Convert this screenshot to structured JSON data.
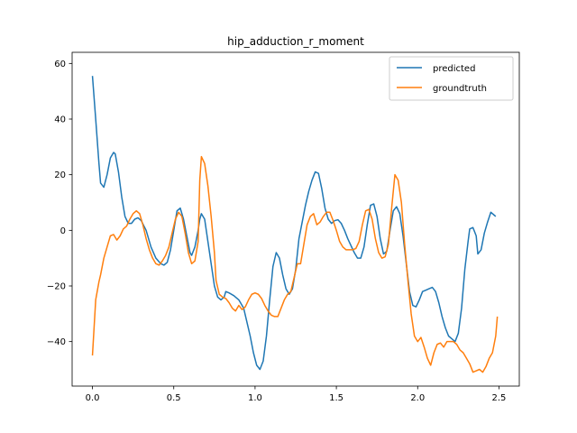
{
  "chart_data": {
    "type": "line",
    "title": "hip_adduction_r_moment",
    "xlabel": "",
    "ylabel": "",
    "xlim": [
      -0.125,
      2.625
    ],
    "ylim": [
      -56,
      64
    ],
    "x_ticks": [
      0.0,
      0.5,
      1.0,
      1.5,
      2.0,
      2.5
    ],
    "x_tick_labels": [
      "0.0",
      "0.5",
      "1.0",
      "1.5",
      "2.0",
      "2.5"
    ],
    "y_ticks": [
      -40,
      -20,
      0,
      20,
      40,
      60
    ],
    "y_tick_labels": [
      "−40",
      "−20",
      "0",
      "20",
      "40",
      "60"
    ],
    "grid": false,
    "legend_position": "top-right",
    "series": [
      {
        "name": "predicted",
        "color": "#1f77b4",
        "points": [
          [
            0.0,
            55.5
          ],
          [
            0.02,
            40
          ],
          [
            0.04,
            24
          ],
          [
            0.05,
            17
          ],
          [
            0.07,
            15.5
          ],
          [
            0.09,
            20
          ],
          [
            0.11,
            26
          ],
          [
            0.13,
            28
          ],
          [
            0.14,
            27.5
          ],
          [
            0.16,
            21
          ],
          [
            0.18,
            12
          ],
          [
            0.2,
            5
          ],
          [
            0.22,
            2.5
          ],
          [
            0.24,
            2.5
          ],
          [
            0.26,
            4
          ],
          [
            0.28,
            4.5
          ],
          [
            0.3,
            3.5
          ],
          [
            0.33,
            0
          ],
          [
            0.36,
            -6
          ],
          [
            0.39,
            -10
          ],
          [
            0.42,
            -12
          ],
          [
            0.44,
            -12.5
          ],
          [
            0.46,
            -11.5
          ],
          [
            0.48,
            -7
          ],
          [
            0.5,
            0
          ],
          [
            0.52,
            7
          ],
          [
            0.54,
            8
          ],
          [
            0.56,
            4
          ],
          [
            0.58,
            -2
          ],
          [
            0.6,
            -8
          ],
          [
            0.61,
            -9
          ],
          [
            0.63,
            -6
          ],
          [
            0.65,
            0
          ],
          [
            0.66,
            4
          ],
          [
            0.67,
            6
          ],
          [
            0.69,
            4
          ],
          [
            0.71,
            -4
          ],
          [
            0.73,
            -12
          ],
          [
            0.75,
            -20
          ],
          [
            0.77,
            -24
          ],
          [
            0.79,
            -25
          ],
          [
            0.81,
            -24
          ],
          [
            0.82,
            -22
          ],
          [
            0.84,
            -22.5
          ],
          [
            0.87,
            -23.5
          ],
          [
            0.9,
            -25
          ],
          [
            0.93,
            -28
          ],
          [
            0.95,
            -33
          ],
          [
            0.97,
            -38
          ],
          [
            0.99,
            -44
          ],
          [
            1.01,
            -48.5
          ],
          [
            1.03,
            -50
          ],
          [
            1.05,
            -47
          ],
          [
            1.07,
            -38
          ],
          [
            1.09,
            -25
          ],
          [
            1.11,
            -13
          ],
          [
            1.13,
            -8
          ],
          [
            1.15,
            -10
          ],
          [
            1.17,
            -16
          ],
          [
            1.19,
            -21
          ],
          [
            1.21,
            -23
          ],
          [
            1.23,
            -21
          ],
          [
            1.25,
            -14
          ],
          [
            1.27,
            -3
          ],
          [
            1.29,
            3
          ],
          [
            1.31,
            9
          ],
          [
            1.33,
            14
          ],
          [
            1.35,
            18
          ],
          [
            1.37,
            21
          ],
          [
            1.39,
            20.5
          ],
          [
            1.41,
            15
          ],
          [
            1.43,
            8
          ],
          [
            1.45,
            4
          ],
          [
            1.47,
            2.5
          ],
          [
            1.49,
            3.5
          ],
          [
            1.51,
            3.8
          ],
          [
            1.53,
            2.5
          ],
          [
            1.55,
            0
          ],
          [
            1.57,
            -3
          ],
          [
            1.59,
            -5.5
          ],
          [
            1.61,
            -8
          ],
          [
            1.63,
            -10
          ],
          [
            1.65,
            -10
          ],
          [
            1.67,
            -6
          ],
          [
            1.69,
            2
          ],
          [
            1.71,
            9
          ],
          [
            1.73,
            9.5
          ],
          [
            1.75,
            5
          ],
          [
            1.77,
            -3
          ],
          [
            1.79,
            -8.5
          ],
          [
            1.81,
            -7.5
          ],
          [
            1.83,
            0
          ],
          [
            1.85,
            7
          ],
          [
            1.87,
            8.5
          ],
          [
            1.89,
            6
          ],
          [
            1.91,
            -2
          ],
          [
            1.93,
            -12
          ],
          [
            1.95,
            -22
          ],
          [
            1.97,
            -27
          ],
          [
            1.99,
            -27.5
          ],
          [
            2.01,
            -25
          ],
          [
            2.03,
            -22
          ],
          [
            2.05,
            -21.5
          ],
          [
            2.07,
            -21
          ],
          [
            2.09,
            -20.5
          ],
          [
            2.11,
            -22
          ],
          [
            2.13,
            -26
          ],
          [
            2.15,
            -31
          ],
          [
            2.17,
            -35
          ],
          [
            2.19,
            -38
          ],
          [
            2.21,
            -39
          ],
          [
            2.23,
            -40
          ],
          [
            2.25,
            -37
          ],
          [
            2.27,
            -28
          ],
          [
            2.29,
            -14
          ],
          [
            2.31,
            -4
          ],
          [
            2.32,
            0.5
          ],
          [
            2.34,
            1
          ],
          [
            2.36,
            -2
          ],
          [
            2.37,
            -8.5
          ],
          [
            2.39,
            -7
          ],
          [
            2.41,
            -1
          ],
          [
            2.43,
            3
          ],
          [
            2.45,
            6.5
          ],
          [
            2.47,
            5.5
          ],
          [
            2.48,
            5
          ]
        ]
      },
      {
        "name": "groundtruth",
        "color": "#ff7f0e",
        "points": [
          [
            0.0,
            -45
          ],
          [
            0.01,
            -35
          ],
          [
            0.02,
            -25
          ],
          [
            0.04,
            -18.5
          ],
          [
            0.05,
            -16
          ],
          [
            0.07,
            -10
          ],
          [
            0.09,
            -6
          ],
          [
            0.11,
            -2
          ],
          [
            0.13,
            -1.5
          ],
          [
            0.15,
            -3.5
          ],
          [
            0.17,
            -2
          ],
          [
            0.19,
            0.5
          ],
          [
            0.21,
            1.5
          ],
          [
            0.23,
            4
          ],
          [
            0.25,
            6
          ],
          [
            0.27,
            7
          ],
          [
            0.29,
            6
          ],
          [
            0.31,
            2
          ],
          [
            0.33,
            -3
          ],
          [
            0.35,
            -7
          ],
          [
            0.37,
            -10
          ],
          [
            0.39,
            -12
          ],
          [
            0.41,
            -12.5
          ],
          [
            0.43,
            -11
          ],
          [
            0.45,
            -9
          ],
          [
            0.47,
            -6
          ],
          [
            0.49,
            -1
          ],
          [
            0.51,
            4
          ],
          [
            0.53,
            6.5
          ],
          [
            0.55,
            5
          ],
          [
            0.57,
            -1
          ],
          [
            0.59,
            -8
          ],
          [
            0.61,
            -12
          ],
          [
            0.63,
            -11
          ],
          [
            0.65,
            -4
          ],
          [
            0.66,
            18
          ],
          [
            0.67,
            26.5
          ],
          [
            0.69,
            24
          ],
          [
            0.71,
            16
          ],
          [
            0.73,
            5
          ],
          [
            0.75,
            -8
          ],
          [
            0.76,
            -18
          ],
          [
            0.78,
            -23
          ],
          [
            0.8,
            -24
          ],
          [
            0.82,
            -24.5
          ],
          [
            0.84,
            -26
          ],
          [
            0.86,
            -28
          ],
          [
            0.88,
            -29
          ],
          [
            0.9,
            -27
          ],
          [
            0.92,
            -28.5
          ],
          [
            0.94,
            -27.5
          ],
          [
            0.96,
            -25
          ],
          [
            0.98,
            -23
          ],
          [
            1.0,
            -22.5
          ],
          [
            1.02,
            -23
          ],
          [
            1.04,
            -24.5
          ],
          [
            1.06,
            -27
          ],
          [
            1.08,
            -29
          ],
          [
            1.1,
            -30.5
          ],
          [
            1.12,
            -31
          ],
          [
            1.14,
            -31
          ],
          [
            1.16,
            -28
          ],
          [
            1.18,
            -25
          ],
          [
            1.2,
            -23
          ],
          [
            1.22,
            -22
          ],
          [
            1.24,
            -17
          ],
          [
            1.26,
            -12
          ],
          [
            1.28,
            -12
          ],
          [
            1.3,
            -5
          ],
          [
            1.32,
            2
          ],
          [
            1.34,
            5
          ],
          [
            1.36,
            6
          ],
          [
            1.38,
            2
          ],
          [
            1.4,
            3
          ],
          [
            1.42,
            5
          ],
          [
            1.44,
            6.5
          ],
          [
            1.46,
            6.5
          ],
          [
            1.48,
            3.5
          ],
          [
            1.5,
            0
          ],
          [
            1.52,
            -4
          ],
          [
            1.54,
            -6
          ],
          [
            1.56,
            -7
          ],
          [
            1.58,
            -7
          ],
          [
            1.6,
            -7
          ],
          [
            1.62,
            -6.5
          ],
          [
            1.64,
            -4
          ],
          [
            1.66,
            2
          ],
          [
            1.68,
            7
          ],
          [
            1.7,
            7.5
          ],
          [
            1.72,
            4
          ],
          [
            1.74,
            -3
          ],
          [
            1.76,
            -8
          ],
          [
            1.78,
            -10
          ],
          [
            1.8,
            -9.5
          ],
          [
            1.82,
            -5
          ],
          [
            1.84,
            8
          ],
          [
            1.86,
            20
          ],
          [
            1.88,
            18
          ],
          [
            1.9,
            10
          ],
          [
            1.92,
            -5
          ],
          [
            1.94,
            -18
          ],
          [
            1.96,
            -30
          ],
          [
            1.98,
            -38
          ],
          [
            2.0,
            -40
          ],
          [
            2.02,
            -38.5
          ],
          [
            2.04,
            -42
          ],
          [
            2.06,
            -46
          ],
          [
            2.08,
            -48.5
          ],
          [
            2.1,
            -44
          ],
          [
            2.12,
            -41
          ],
          [
            2.14,
            -40.5
          ],
          [
            2.16,
            -42
          ],
          [
            2.18,
            -40
          ],
          [
            2.2,
            -40
          ],
          [
            2.22,
            -40
          ],
          [
            2.24,
            -41
          ],
          [
            2.26,
            -43
          ],
          [
            2.28,
            -44
          ],
          [
            2.3,
            -46
          ],
          [
            2.32,
            -48
          ],
          [
            2.34,
            -51
          ],
          [
            2.36,
            -50.5
          ],
          [
            2.38,
            -50
          ],
          [
            2.4,
            -51
          ],
          [
            2.42,
            -49
          ],
          [
            2.44,
            -46
          ],
          [
            2.46,
            -44
          ],
          [
            2.48,
            -38
          ],
          [
            2.49,
            -31
          ]
        ]
      }
    ]
  }
}
